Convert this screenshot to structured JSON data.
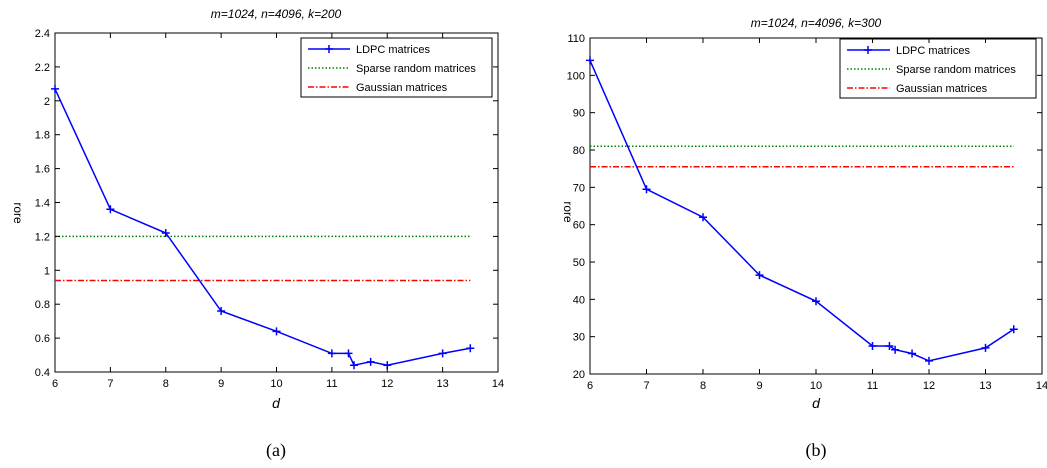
{
  "chart_data": [
    {
      "type": "line",
      "title": "m=1024, n=4096, k=200",
      "xlabel": "d",
      "ylabel": "rore",
      "xlim": [
        6,
        14
      ],
      "ylim": [
        0.4,
        2.4
      ],
      "xticks": [
        "6",
        "7",
        "8",
        "9",
        "10",
        "11",
        "12",
        "13",
        "14"
      ],
      "yticks": [
        "0.4",
        "0.6",
        "0.8",
        "1",
        "1.2",
        "1.4",
        "1.6",
        "1.8",
        "2",
        "2.2",
        "2.4"
      ],
      "grid": false,
      "legend_position": "top-right",
      "caption": "(a)",
      "series": [
        {
          "name": "LDPC matrices",
          "color": "#0000ff",
          "style": "solid",
          "marker": "plus",
          "x": [
            6,
            7,
            8,
            9,
            10,
            11,
            11.3,
            11.4,
            11.7,
            12,
            13,
            13.5
          ],
          "y": [
            2.07,
            1.36,
            1.22,
            0.76,
            0.64,
            0.51,
            0.51,
            0.44,
            0.46,
            0.44,
            0.51,
            0.54
          ]
        },
        {
          "name": "Sparse random matrices",
          "color": "#008000",
          "style": "dotted",
          "marker": "none",
          "x": [
            6,
            13.5
          ],
          "y": [
            1.2,
            1.2
          ]
        },
        {
          "name": "Gaussian matrices",
          "color": "#ff0000",
          "style": "dashdot",
          "marker": "none",
          "x": [
            6,
            13.5
          ],
          "y": [
            0.94,
            0.94
          ]
        }
      ]
    },
    {
      "type": "line",
      "title": "m=1024, n=4096, k=300",
      "xlabel": "d",
      "ylabel": "rore",
      "xlim": [
        6,
        14
      ],
      "ylim": [
        20,
        110
      ],
      "xticks": [
        "6",
        "7",
        "8",
        "9",
        "10",
        "11",
        "12",
        "13",
        "14"
      ],
      "yticks": [
        "20",
        "30",
        "40",
        "50",
        "60",
        "70",
        "80",
        "90",
        "100",
        "110"
      ],
      "grid": false,
      "legend_position": "top-right",
      "caption": "(b)",
      "series": [
        {
          "name": "LDPC matrices",
          "color": "#0000ff",
          "style": "solid",
          "marker": "plus",
          "x": [
            6,
            7,
            8,
            9,
            10,
            11,
            11.3,
            11.4,
            11.7,
            12,
            13,
            13.5
          ],
          "y": [
            104,
            69.5,
            62,
            46.5,
            39.5,
            27.5,
            27.5,
            26.5,
            25.5,
            23.5,
            27,
            32
          ]
        },
        {
          "name": "Sparse random matrices",
          "color": "#008000",
          "style": "dotted",
          "marker": "none",
          "x": [
            6,
            13.5
          ],
          "y": [
            81,
            81
          ]
        },
        {
          "name": "Gaussian matrices",
          "color": "#ff0000",
          "style": "dashdot",
          "marker": "none",
          "x": [
            6,
            13.5
          ],
          "y": [
            75.5,
            75.5
          ]
        }
      ]
    }
  ]
}
